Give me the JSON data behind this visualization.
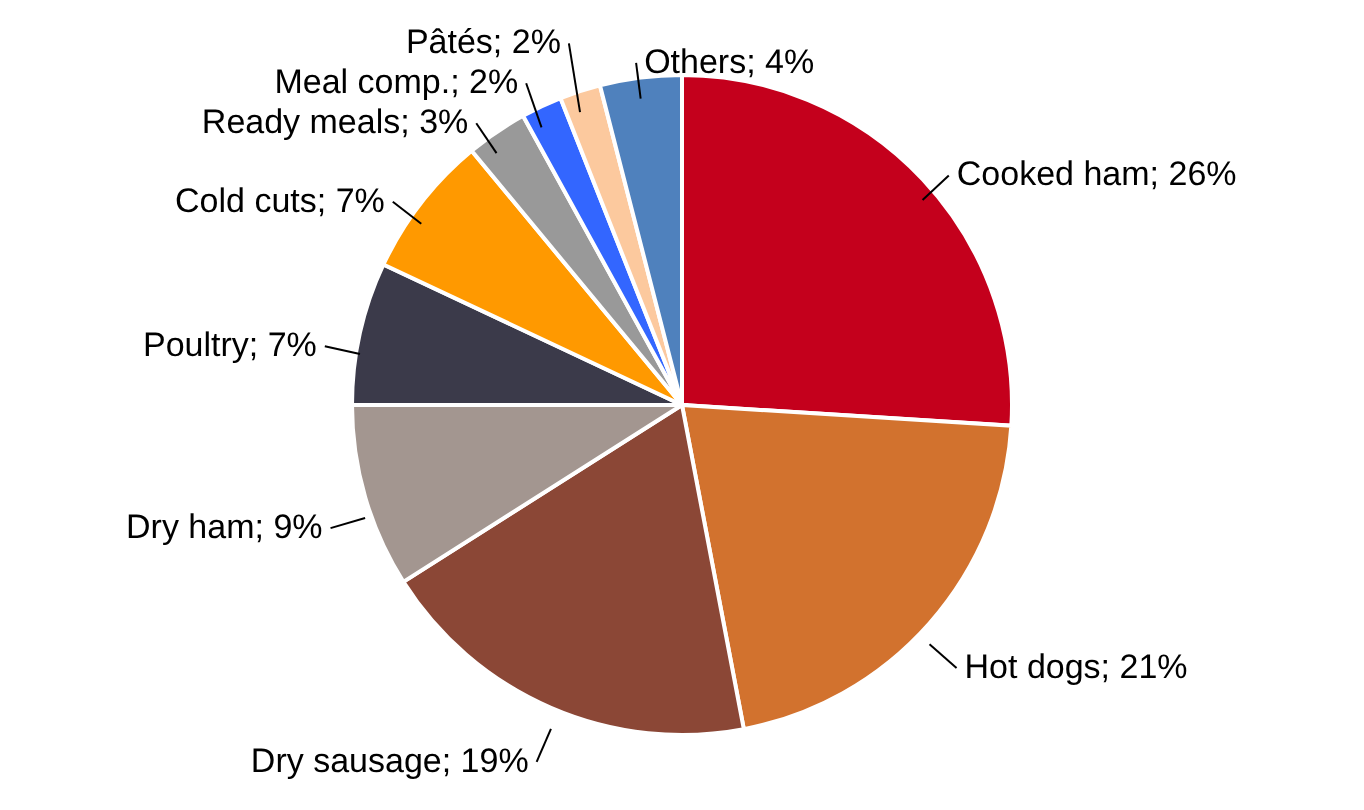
{
  "chart_data": {
    "type": "pie",
    "categories": [
      "Cooked ham",
      "Hot dogs",
      "Dry sausage",
      "Dry ham",
      "Poultry",
      "Cold cuts",
      "Ready meals",
      "Meal comp.",
      "Pâtés",
      "Others"
    ],
    "values": [
      26,
      21,
      19,
      9,
      7,
      7,
      3,
      2,
      2,
      4
    ],
    "colors": [
      "#c4001c",
      "#d2722e",
      "#8b4736",
      "#a39690",
      "#3b3a4a",
      "#ff9900",
      "#999999",
      "#3366ff",
      "#fcc99e",
      "#4f81bd"
    ],
    "value_labels": [
      "; 26%",
      "; 21%",
      "; 19%",
      "; 9%",
      "; 7%",
      "; 7%",
      "; 3%",
      "; 2%",
      "; 2%",
      "; 4%"
    ]
  }
}
